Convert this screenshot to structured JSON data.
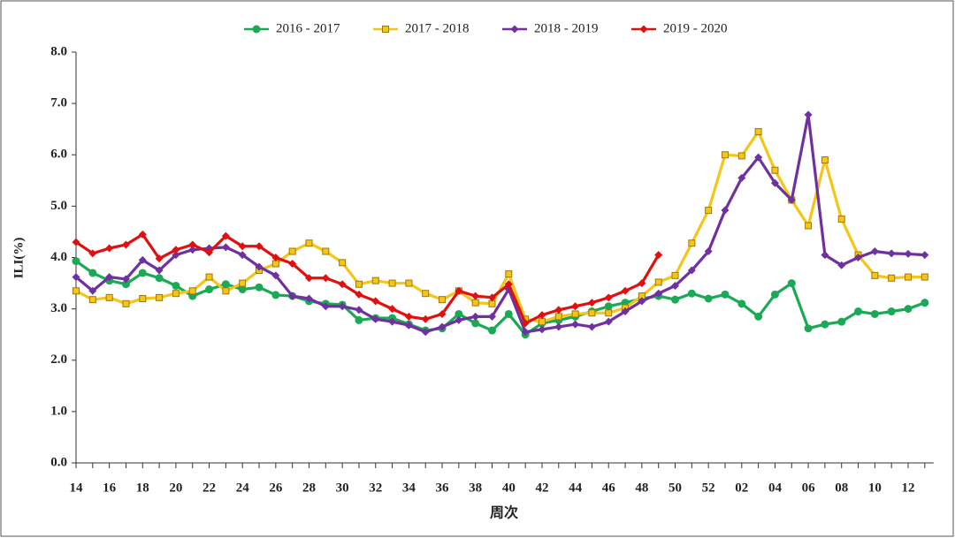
{
  "chart_data": {
    "type": "line",
    "x_label": "周次",
    "y_label": "ILI(%)",
    "categories": [
      "14",
      null,
      "16",
      null,
      "18",
      null,
      "20",
      null,
      "22",
      null,
      "24",
      null,
      "26",
      null,
      "28",
      null,
      "30",
      null,
      "32",
      null,
      "34",
      null,
      "36",
      null,
      "38",
      null,
      "40",
      null,
      "42",
      null,
      "44",
      null,
      "46",
      null,
      "48",
      null,
      "50",
      null,
      "52",
      null,
      "02",
      null,
      "04",
      null,
      "06",
      null,
      "08",
      null,
      "10",
      null,
      "12",
      null
    ],
    "ylim": [
      0,
      8
    ],
    "yticks": [
      {
        "value": 0,
        "label": "0.0"
      },
      {
        "value": 1,
        "label": "1.0"
      },
      {
        "value": 2,
        "label": "2.0"
      },
      {
        "value": 3,
        "label": "3.0"
      },
      {
        "value": 4,
        "label": "4.0"
      },
      {
        "value": 5,
        "label": "5.0"
      },
      {
        "value": 6,
        "label": "6.0"
      },
      {
        "value": 7,
        "label": "7.0"
      },
      {
        "value": 8,
        "label": "8.0"
      }
    ],
    "legend": "top",
    "series": [
      {
        "name": "2016 - 2017",
        "color": "#1aaa55",
        "marker": "circle",
        "values": [
          3.93,
          3.7,
          3.55,
          3.48,
          3.7,
          3.6,
          3.45,
          3.25,
          3.38,
          3.48,
          3.38,
          3.42,
          3.27,
          3.25,
          3.15,
          3.1,
          3.08,
          2.78,
          2.82,
          2.82,
          2.7,
          2.58,
          2.62,
          2.9,
          2.72,
          2.58,
          2.9,
          2.5,
          2.72,
          2.78,
          2.85,
          2.95,
          3.05,
          3.12,
          3.2,
          3.25,
          3.18,
          3.3,
          3.2,
          3.28,
          3.1,
          2.85,
          3.28,
          3.5,
          2.62,
          2.7,
          2.75,
          2.95,
          2.9,
          2.95,
          3.0,
          3.12
        ]
      },
      {
        "name": "2017 - 2018",
        "color": "#f5c518",
        "marker": "square",
        "values": [
          3.35,
          3.18,
          3.22,
          3.1,
          3.2,
          3.22,
          3.3,
          3.35,
          3.62,
          3.35,
          3.5,
          3.75,
          3.88,
          4.12,
          4.28,
          4.12,
          3.9,
          3.48,
          3.55,
          3.5,
          3.5,
          3.3,
          3.18,
          3.35,
          3.12,
          3.1,
          3.68,
          2.8,
          2.75,
          2.85,
          2.9,
          2.92,
          2.92,
          3.02,
          3.25,
          3.52,
          3.65,
          4.28,
          4.92,
          6.0,
          5.98,
          6.45,
          5.7,
          5.12,
          4.62,
          5.9,
          4.75,
          4.05,
          3.65,
          3.6,
          3.62,
          3.62
        ]
      },
      {
        "name": "2018 - 2019",
        "color": "#7030a0",
        "marker": "diamond",
        "values": [
          3.62,
          3.35,
          3.62,
          3.58,
          3.95,
          3.75,
          4.05,
          4.15,
          4.18,
          4.2,
          4.05,
          3.82,
          3.65,
          3.25,
          3.2,
          3.05,
          3.05,
          2.98,
          2.8,
          2.75,
          2.68,
          2.55,
          2.65,
          2.78,
          2.85,
          2.85,
          3.38,
          2.55,
          2.6,
          2.65,
          2.7,
          2.65,
          2.75,
          2.95,
          3.15,
          3.3,
          3.45,
          3.75,
          4.12,
          4.92,
          5.55,
          5.95,
          5.45,
          5.12,
          6.78,
          4.05,
          3.85,
          4.0,
          4.12,
          4.08,
          4.07,
          4.05
        ]
      },
      {
        "name": "2019 - 2020",
        "color": "#e01010",
        "marker": "diamond",
        "values": [
          4.3,
          4.08,
          4.18,
          4.25,
          4.45,
          3.98,
          4.15,
          4.25,
          4.1,
          4.42,
          4.22,
          4.22,
          4.0,
          3.88,
          3.6,
          3.6,
          3.48,
          3.28,
          3.15,
          3.0,
          2.85,
          2.8,
          2.9,
          3.35,
          3.25,
          3.22,
          3.48,
          2.72,
          2.88,
          2.98,
          3.05,
          3.12,
          3.22,
          3.35,
          3.5,
          4.05,
          null,
          null,
          null,
          null,
          null,
          null,
          null,
          null,
          null,
          null,
          null,
          null,
          null,
          null,
          null,
          null
        ]
      }
    ]
  }
}
